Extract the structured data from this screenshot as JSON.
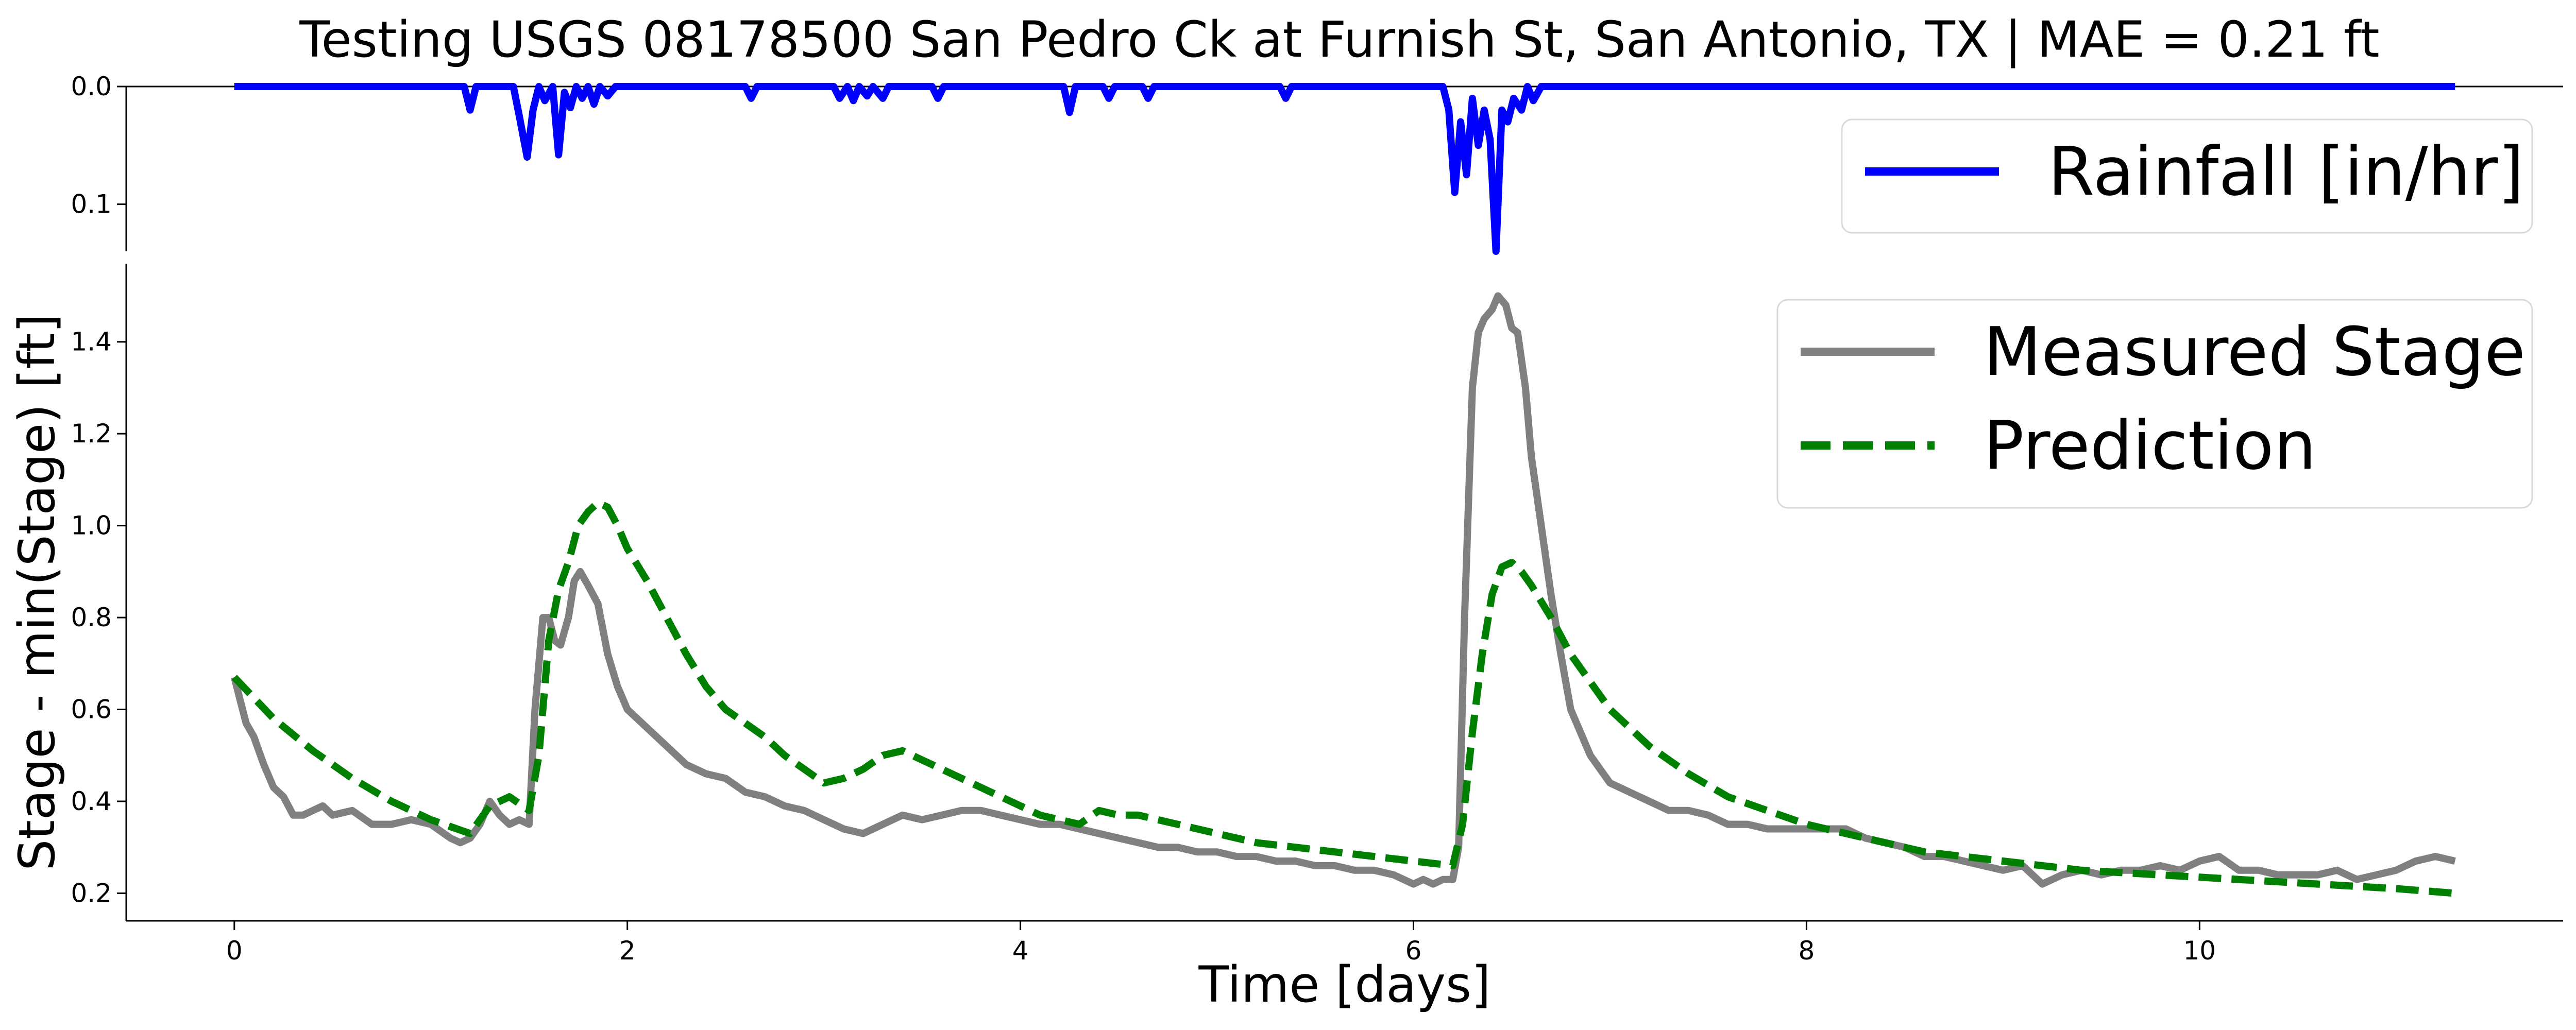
{
  "chart_data": {
    "type": "line",
    "title": "Testing USGS 08178500 San Pedro Ck at Furnish St, San Antonio, TX | MAE = 0.21 ft",
    "panels": [
      {
        "id": "rainfall",
        "ylim": [
          0.14,
          0.0
        ],
        "y_inverted": true,
        "xlim": [
          -0.55,
          11.85
        ],
        "yticks": [
          0.0,
          0.1
        ],
        "ytick_labels": [
          "0.0",
          "0.1"
        ],
        "legend_placement": "upper-right",
        "series": [
          {
            "name": "Rainfall [in/hr]",
            "color": "#0000ff",
            "style": "solid",
            "x": [
              0,
              1.17,
              1.2,
              1.23,
              1.42,
              1.45,
              1.49,
              1.52,
              1.55,
              1.58,
              1.62,
              1.65,
              1.68,
              1.71,
              1.74,
              1.77,
              1.8,
              1.83,
              1.86,
              1.9,
              1.94,
              2.0,
              2.6,
              2.63,
              2.66,
              3.05,
              3.08,
              3.12,
              3.15,
              3.18,
              3.22,
              3.25,
              3.3,
              3.33,
              3.36,
              3.55,
              3.58,
              3.61,
              4.22,
              4.25,
              4.28,
              4.42,
              4.45,
              4.48,
              4.62,
              4.65,
              4.68,
              5.32,
              5.35,
              5.38,
              6.15,
              6.18,
              6.21,
              6.24,
              6.27,
              6.3,
              6.33,
              6.36,
              6.39,
              6.42,
              6.45,
              6.48,
              6.51,
              6.55,
              6.58,
              6.61,
              6.65,
              11.3
            ],
            "y": [
              0.0,
              0.0,
              0.02,
              0.0,
              0.0,
              0.025,
              0.06,
              0.02,
              0.0,
              0.012,
              0.0,
              0.058,
              0.005,
              0.018,
              0.0,
              0.01,
              0.0,
              0.015,
              0.0,
              0.008,
              0.0,
              0.0,
              0.0,
              0.01,
              0.0,
              0.0,
              0.01,
              0.0,
              0.012,
              0.0,
              0.008,
              0.0,
              0.01,
              0.0,
              0.0,
              0.0,
              0.01,
              0.0,
              0.0,
              0.022,
              0.0,
              0.0,
              0.01,
              0.0,
              0.0,
              0.01,
              0.0,
              0.0,
              0.01,
              0.0,
              0.0,
              0.02,
              0.09,
              0.03,
              0.075,
              0.01,
              0.05,
              0.02,
              0.045,
              0.14,
              0.02,
              0.03,
              0.01,
              0.02,
              0.0,
              0.012,
              0.0,
              0.0
            ]
          }
        ]
      },
      {
        "id": "stage",
        "ylim": [
          0.14,
          1.57
        ],
        "xlim": [
          -0.55,
          11.85
        ],
        "yticks": [
          0.2,
          0.4,
          0.6,
          0.8,
          1.0,
          1.2,
          1.4
        ],
        "ytick_labels": [
          "0.2",
          "0.4",
          "0.6",
          "0.8",
          "1.0",
          "1.2",
          "1.4"
        ],
        "xticks": [
          0,
          2,
          4,
          6,
          8,
          10
        ],
        "xtick_labels": [
          "0",
          "2",
          "4",
          "6",
          "8",
          "10"
        ],
        "xlabel": "Time [days]",
        "ylabel": "Stage - min(Stage) [ft]",
        "legend_placement": "upper-right",
        "series": [
          {
            "name": "Measured Stage",
            "color": "#808080",
            "style": "solid",
            "x": [
              0,
              0.03,
              0.06,
              0.1,
              0.15,
              0.2,
              0.25,
              0.3,
              0.35,
              0.4,
              0.45,
              0.5,
              0.6,
              0.7,
              0.8,
              0.9,
              1.0,
              1.1,
              1.15,
              1.2,
              1.25,
              1.3,
              1.35,
              1.4,
              1.45,
              1.5,
              1.53,
              1.57,
              1.6,
              1.63,
              1.66,
              1.7,
              1.73,
              1.76,
              1.8,
              1.85,
              1.9,
              1.95,
              2.0,
              2.1,
              2.2,
              2.3,
              2.4,
              2.5,
              2.6,
              2.7,
              2.8,
              2.9,
              3.0,
              3.1,
              3.2,
              3.3,
              3.4,
              3.5,
              3.6,
              3.7,
              3.8,
              3.9,
              4.0,
              4.1,
              4.2,
              4.3,
              4.4,
              4.5,
              4.6,
              4.7,
              4.8,
              4.9,
              5.0,
              5.1,
              5.2,
              5.3,
              5.4,
              5.5,
              5.6,
              5.7,
              5.8,
              5.9,
              6.0,
              6.05,
              6.1,
              6.15,
              6.2,
              6.23,
              6.26,
              6.3,
              6.33,
              6.36,
              6.4,
              6.43,
              6.47,
              6.5,
              6.53,
              6.57,
              6.6,
              6.65,
              6.7,
              6.75,
              6.8,
              6.9,
              7.0,
              7.1,
              7.2,
              7.3,
              7.4,
              7.5,
              7.6,
              7.7,
              7.8,
              7.9,
              8.0,
              8.1,
              8.2,
              8.3,
              8.4,
              8.5,
              8.6,
              8.7,
              8.8,
              8.9,
              9.0,
              9.1,
              9.2,
              9.3,
              9.4,
              9.5,
              9.6,
              9.7,
              9.8,
              9.9,
              10.0,
              10.1,
              10.2,
              10.3,
              10.4,
              10.5,
              10.6,
              10.7,
              10.8,
              10.9,
              11.0,
              11.1,
              11.2,
              11.3
            ],
            "y": [
              0.67,
              0.62,
              0.57,
              0.54,
              0.48,
              0.43,
              0.41,
              0.37,
              0.37,
              0.38,
              0.39,
              0.37,
              0.38,
              0.35,
              0.35,
              0.36,
              0.35,
              0.32,
              0.31,
              0.32,
              0.35,
              0.4,
              0.37,
              0.35,
              0.36,
              0.35,
              0.6,
              0.8,
              0.8,
              0.75,
              0.74,
              0.8,
              0.88,
              0.9,
              0.87,
              0.83,
              0.72,
              0.65,
              0.6,
              0.56,
              0.52,
              0.48,
              0.46,
              0.45,
              0.42,
              0.41,
              0.39,
              0.38,
              0.36,
              0.34,
              0.33,
              0.35,
              0.37,
              0.36,
              0.37,
              0.38,
              0.38,
              0.37,
              0.36,
              0.35,
              0.35,
              0.34,
              0.33,
              0.32,
              0.31,
              0.3,
              0.3,
              0.29,
              0.29,
              0.28,
              0.28,
              0.27,
              0.27,
              0.26,
              0.26,
              0.25,
              0.25,
              0.24,
              0.22,
              0.23,
              0.22,
              0.23,
              0.23,
              0.3,
              0.8,
              1.3,
              1.42,
              1.45,
              1.47,
              1.5,
              1.48,
              1.43,
              1.42,
              1.3,
              1.15,
              1.0,
              0.85,
              0.72,
              0.6,
              0.5,
              0.44,
              0.42,
              0.4,
              0.38,
              0.38,
              0.37,
              0.35,
              0.35,
              0.34,
              0.34,
              0.34,
              0.34,
              0.34,
              0.32,
              0.31,
              0.3,
              0.28,
              0.28,
              0.27,
              0.26,
              0.25,
              0.26,
              0.22,
              0.24,
              0.25,
              0.24,
              0.25,
              0.25,
              0.26,
              0.25,
              0.27,
              0.28,
              0.25,
              0.25,
              0.24,
              0.24,
              0.24,
              0.25,
              0.23,
              0.24,
              0.25,
              0.27,
              0.28,
              0.27
            ]
          },
          {
            "name": "Prediction",
            "color": "#008000",
            "style": "dashed",
            "x": [
              0,
              0.2,
              0.4,
              0.6,
              0.8,
              1.0,
              1.2,
              1.3,
              1.4,
              1.5,
              1.55,
              1.6,
              1.65,
              1.7,
              1.75,
              1.8,
              1.85,
              1.9,
              1.95,
              2.0,
              2.1,
              2.2,
              2.3,
              2.4,
              2.5,
              2.6,
              2.7,
              2.8,
              2.9,
              3.0,
              3.1,
              3.2,
              3.3,
              3.4,
              3.5,
              3.6,
              3.7,
              3.8,
              3.9,
              4.0,
              4.1,
              4.2,
              4.3,
              4.4,
              4.5,
              4.6,
              4.7,
              4.8,
              5.0,
              5.2,
              5.4,
              5.6,
              5.8,
              6.0,
              6.2,
              6.25,
              6.3,
              6.35,
              6.4,
              6.45,
              6.5,
              6.55,
              6.6,
              6.7,
              6.8,
              6.9,
              7.0,
              7.2,
              7.4,
              7.6,
              7.8,
              8.0,
              8.3,
              8.6,
              9.0,
              9.4,
              9.8,
              10.2,
              10.6,
              11.0,
              11.3
            ],
            "y": [
              0.67,
              0.58,
              0.51,
              0.45,
              0.4,
              0.36,
              0.33,
              0.39,
              0.41,
              0.38,
              0.5,
              0.75,
              0.86,
              0.92,
              1.0,
              1.03,
              1.05,
              1.04,
              1.0,
              0.95,
              0.88,
              0.8,
              0.72,
              0.65,
              0.6,
              0.57,
              0.54,
              0.5,
              0.47,
              0.44,
              0.45,
              0.47,
              0.5,
              0.51,
              0.49,
              0.47,
              0.45,
              0.43,
              0.41,
              0.39,
              0.37,
              0.36,
              0.35,
              0.38,
              0.37,
              0.37,
              0.36,
              0.35,
              0.33,
              0.31,
              0.3,
              0.29,
              0.28,
              0.27,
              0.26,
              0.35,
              0.55,
              0.72,
              0.85,
              0.91,
              0.92,
              0.9,
              0.87,
              0.8,
              0.72,
              0.66,
              0.6,
              0.52,
              0.46,
              0.41,
              0.38,
              0.35,
              0.32,
              0.29,
              0.27,
              0.25,
              0.24,
              0.23,
              0.22,
              0.21,
              0.2
            ]
          }
        ]
      }
    ]
  }
}
